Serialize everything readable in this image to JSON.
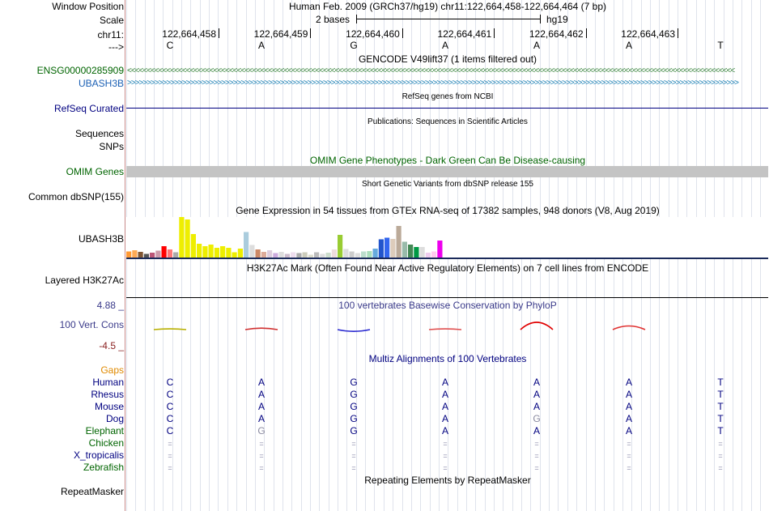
{
  "header": {
    "window_position_label": "Window Position",
    "window_position_value": "Human Feb. 2009 (GRCh37/hg19)   chr11:122,664,458-122,664,464 (7 bp)",
    "scale_label": "Scale",
    "scale_text": "2 bases",
    "scale_assembly": "hg19",
    "chrom_label": "chr11:",
    "strand_label": "--->",
    "positions": [
      "122,664,458",
      "122,664,459",
      "122,664,460",
      "122,664,461",
      "122,664,462",
      "122,664,463"
    ],
    "bases": [
      "C",
      "A",
      "G",
      "A",
      "A",
      "A",
      "T"
    ]
  },
  "gencode": {
    "title": "GENCODE V49lift37 (1 items filtered out)",
    "gene1": "ENSG00000285909",
    "gene2": "UBASH3B",
    "arrow1": "<<<<<<<<<<<<<<<<<<<<<<<<<<<<<<<<<<<<<<<<<<<<<<<<<<<<<<<<<<<<<<<<<<<<<<<<<<<<<<<<<<<<<<<<<<<<<<<<<<<<<<<<<<<<<<<<<<<<<<<<<<<<<<<<<<<<<<<<<<<<<<<<<<<<<<<<<<<",
    "arrow2": ">>>>>>>>>>>>>>>>>>>>>>>>>>>>>>>>>>>>>>>>>>>>>>>>>>>>>>>>>>>>>>>>>>>>>>>>>>>>>>>>>>>>>>>>>>>>>>>>>>>>>>>>>>>>>>>>>>>>>>>>>>>>>>>>>>>>>>>>>>>>>>>>>>>>>>>>>>>>"
  },
  "refseq": {
    "title": "RefSeq genes from NCBI",
    "label": "RefSeq Curated"
  },
  "publications": {
    "title": "Publications: Sequences in Scientific Articles",
    "label1": "Sequences",
    "label2": "SNPs"
  },
  "omim": {
    "title": "OMIM Gene Phenotypes - Dark Green Can Be Disease-causing",
    "label": "OMIM Genes"
  },
  "dbsnp": {
    "title": "Short Genetic Variants from dbSNP release 155",
    "label": "Common dbSNP(155)"
  },
  "gtex": {
    "title": "Gene Expression in 54 tissues from GTEx RNA-seq of 17382 samples, 948 donors (V8, Aug 2019)",
    "label": "UBASH3B",
    "values": [
      0.15,
      0.18,
      0.14,
      0.09,
      0.12,
      0.17,
      0.28,
      0.2,
      0.13,
      1.0,
      0.94,
      0.58,
      0.34,
      0.28,
      0.32,
      0.24,
      0.28,
      0.24,
      0.13,
      0.22,
      0.63,
      0.31,
      0.2,
      0.14,
      0.18,
      0.11,
      0.14,
      0.09,
      0.13,
      0.11,
      0.13,
      0.07,
      0.13,
      0.09,
      0.12,
      0.2,
      0.56,
      0.21,
      0.15,
      0.11,
      0.15,
      0.16,
      0.22,
      0.45,
      0.49,
      0.46,
      0.78,
      0.39,
      0.32,
      0.26,
      0.26,
      0.12,
      0.15,
      0.42
    ],
    "colors": [
      "#ff9933",
      "#ffaa55",
      "#7f5533",
      "#555555",
      "#bb5577",
      "#cc99aa",
      "#ff0000",
      "#ff7777",
      "#aaaaaa",
      "#eeee00",
      "#eeee00",
      "#eeee00",
      "#eeee00",
      "#eeee00",
      "#eeee00",
      "#eeee00",
      "#eeee00",
      "#eeee00",
      "#eeee00",
      "#eeee00",
      "#aaccdd",
      "#dddddd",
      "#cc8866",
      "#ddaa99",
      "#ddccdd",
      "#ccaadd",
      "#dddddd",
      "#ccbbcc",
      "#eeddee",
      "#aaaaaa",
      "#ccccbb",
      "#ddddcc",
      "#bbbbbb",
      "#dddddd",
      "#ccddcc",
      "#eedddd",
      "#99cc33",
      "#dddddd",
      "#cccccc",
      "#dddddd",
      "#bbddcc",
      "#aaddbb",
      "#66aadd",
      "#2255cc",
      "#3366ee",
      "#ddccbb",
      "#bbaa99",
      "#99bbaa",
      "#448855",
      "#009944",
      "#dddddd",
      "#eeccee",
      "#ffccee",
      "#ee00ee"
    ]
  },
  "h3k27ac": {
    "title": "H3K27Ac Mark (Often Found Near Active Regulatory Elements) on 7 cell lines from ENCODE",
    "label": "Layered H3K27Ac"
  },
  "phylop": {
    "title": "100 vertebrates Basewise Conservation by PhyloP",
    "label": "100 Vert. Cons",
    "max": "4.88 _",
    "min": "-4.5 _",
    "bumps": [
      {
        "value": 0.05,
        "color": "#b8b000"
      },
      {
        "value": 0.1,
        "color": "#d03030"
      },
      {
        "value": -0.12,
        "color": "#2a2ad0"
      },
      {
        "value": 0.05,
        "color": "#e05050"
      },
      {
        "value": 0.5,
        "color": "#e00000"
      },
      {
        "value": 0.25,
        "color": "#e03030"
      }
    ]
  },
  "multiz": {
    "title": "Multiz Alignments of 100 Vertebrates",
    "gaps": "Gaps",
    "species": [
      {
        "name": "Human",
        "color": "#000080",
        "bases": [
          "C",
          "A",
          "G",
          "A",
          "A",
          "A",
          "T"
        ]
      },
      {
        "name": "Rhesus",
        "color": "#000080",
        "bases": [
          "C",
          "A",
          "G",
          "A",
          "A",
          "A",
          "T"
        ]
      },
      {
        "name": "Mouse",
        "color": "#000080",
        "bases": [
          "C",
          "A",
          "G",
          "A",
          "A",
          "A",
          "T"
        ]
      },
      {
        "name": "Dog",
        "color": "#000080",
        "bases": [
          "C",
          "A",
          "G",
          "A",
          "G",
          "A",
          "T"
        ]
      },
      {
        "name": "Elephant",
        "color": "#006400",
        "bases": [
          "C",
          "G",
          "G",
          "A",
          "A",
          "A",
          "T"
        ]
      },
      {
        "name": "Chicken",
        "color": "#006400",
        "bases": [
          "=",
          "=",
          "=",
          "=",
          "=",
          "=",
          "="
        ]
      },
      {
        "name": "X_tropicalis",
        "color": "#000080",
        "bases": [
          "=",
          "=",
          "=",
          "=",
          "=",
          "=",
          "="
        ]
      },
      {
        "name": "Zebrafish",
        "color": "#006400",
        "bases": [
          "=",
          "=",
          "=",
          "=",
          "=",
          "=",
          "="
        ]
      }
    ]
  },
  "repeatmasker": {
    "title": "Repeating Elements by RepeatMasker",
    "label": "RepeatMasker"
  }
}
